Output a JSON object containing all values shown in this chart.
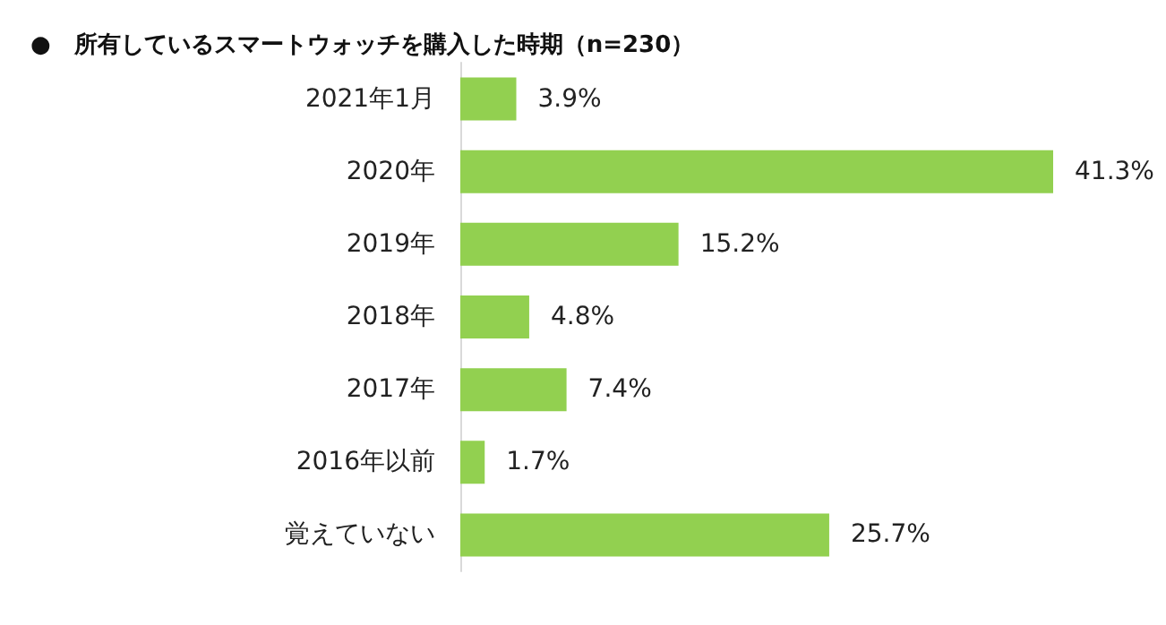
{
  "chart_data": {
    "type": "bar",
    "orientation": "horizontal",
    "title": "●　所有しているスマートウォッチを購入した時期（n=230）",
    "categories": [
      "2021年1月",
      "2020年",
      "2019年",
      "2018年",
      "2017年",
      "2016年以前",
      "覚えていない"
    ],
    "values": [
      3.9,
      41.3,
      15.2,
      4.8,
      7.4,
      1.7,
      25.7
    ],
    "value_labels": [
      "3.9%",
      "41.3%",
      "15.2%",
      "4.8%",
      "7.4%",
      "1.7%",
      "25.7%"
    ],
    "color": "#92d050"
  }
}
